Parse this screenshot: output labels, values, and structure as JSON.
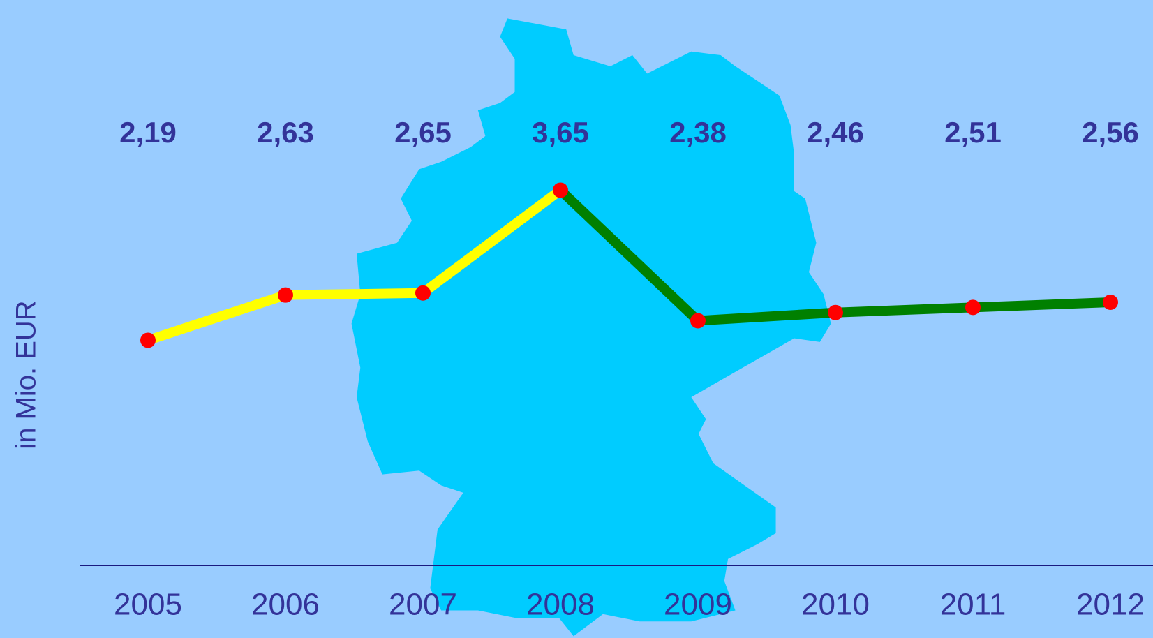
{
  "chart_data": {
    "type": "line",
    "y_label": "in Mio. EUR",
    "categories": [
      "2005",
      "2006",
      "2007",
      "2008",
      "2009",
      "2010",
      "2011",
      "2012"
    ],
    "values": [
      2.19,
      2.63,
      2.65,
      3.65,
      2.38,
      2.46,
      2.51,
      2.56
    ],
    "value_labels": [
      "2,19",
      "2,63",
      "2,65",
      "3,65",
      "2,38",
      "2,46",
      "2,51",
      "2,56"
    ],
    "line_colors": [
      "#ffff00",
      "#ffff00",
      "#ffff00",
      "#008000",
      "#008000",
      "#008000",
      "#008000"
    ],
    "marker_color": "#ff0000",
    "ylim": [
      0,
      5.5
    ]
  }
}
